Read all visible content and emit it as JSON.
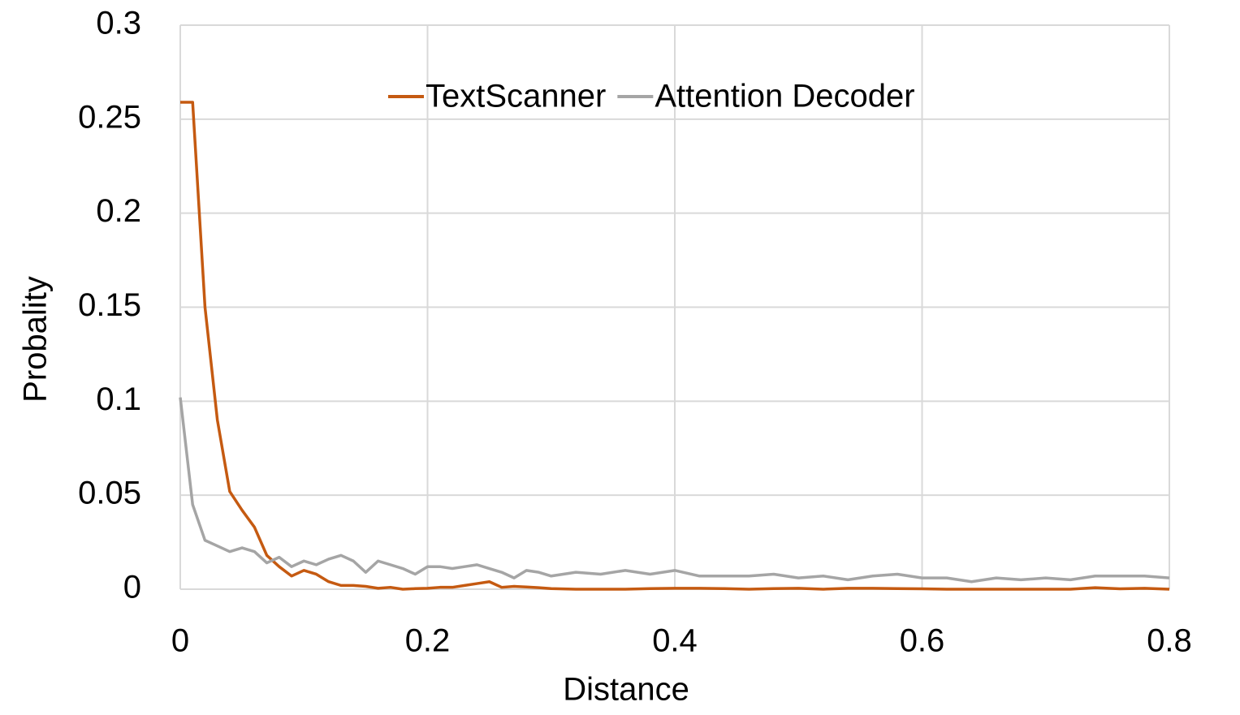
{
  "chart_data": {
    "type": "line",
    "x_label": "Distance",
    "y_label": "Probality",
    "x": [
      0,
      0.01,
      0.02,
      0.03,
      0.04,
      0.05,
      0.06,
      0.07,
      0.08,
      0.09,
      0.1,
      0.11,
      0.12,
      0.13,
      0.14,
      0.15,
      0.16,
      0.17,
      0.18,
      0.19,
      0.2,
      0.21,
      0.22,
      0.23,
      0.24,
      0.25,
      0.26,
      0.27,
      0.28,
      0.29,
      0.3,
      0.32,
      0.34,
      0.36,
      0.38,
      0.4,
      0.42,
      0.44,
      0.46,
      0.48,
      0.5,
      0.52,
      0.54,
      0.56,
      0.58,
      0.6,
      0.62,
      0.64,
      0.66,
      0.68,
      0.7,
      0.72,
      0.74,
      0.76,
      0.78,
      0.8
    ],
    "series": [
      {
        "name": "TextScanner",
        "color": "#c55a11",
        "values": [
          0.259,
          0.259,
          0.15,
          0.09,
          0.052,
          0.042,
          0.033,
          0.018,
          0.012,
          0.007,
          0.01,
          0.008,
          0.004,
          0.002,
          0.002,
          0.0015,
          0.0005,
          0.001,
          0,
          0.0003,
          0.0005,
          0.001,
          0.001,
          0.002,
          0.003,
          0.004,
          0.001,
          0.0015,
          0.0012,
          0.0008,
          0.0003,
          0,
          0,
          0,
          0.0003,
          0.0005,
          0.0005,
          0.0003,
          0,
          0.0003,
          0.0005,
          0,
          0.0005,
          0.0005,
          0.0003,
          0.0002,
          0,
          0,
          0,
          0,
          0,
          0,
          0.0008,
          0.0002,
          0.0005,
          0
        ]
      },
      {
        "name": "Attention Decoder",
        "color": "#a5a5a5",
        "values": [
          0.102,
          0.045,
          0.026,
          0.023,
          0.02,
          0.022,
          0.02,
          0.014,
          0.017,
          0.012,
          0.015,
          0.013,
          0.016,
          0.018,
          0.015,
          0.009,
          0.015,
          0.013,
          0.011,
          0.008,
          0.012,
          0.012,
          0.011,
          0.012,
          0.013,
          0.011,
          0.009,
          0.006,
          0.01,
          0.009,
          0.007,
          0.009,
          0.008,
          0.01,
          0.008,
          0.01,
          0.007,
          0.007,
          0.007,
          0.008,
          0.006,
          0.007,
          0.005,
          0.007,
          0.008,
          0.006,
          0.006,
          0.004,
          0.006,
          0.005,
          0.006,
          0.005,
          0.007,
          0.007,
          0.007,
          0.006
        ]
      }
    ],
    "xlim": [
      0,
      0.8
    ],
    "xticks": [
      0,
      0.2,
      0.4,
      0.6,
      0.8
    ],
    "ylim": [
      0,
      0.3
    ],
    "yticks": [
      0,
      0.05,
      0.1,
      0.15,
      0.2,
      0.25,
      0.3
    ],
    "grid": true,
    "legend": "top"
  }
}
